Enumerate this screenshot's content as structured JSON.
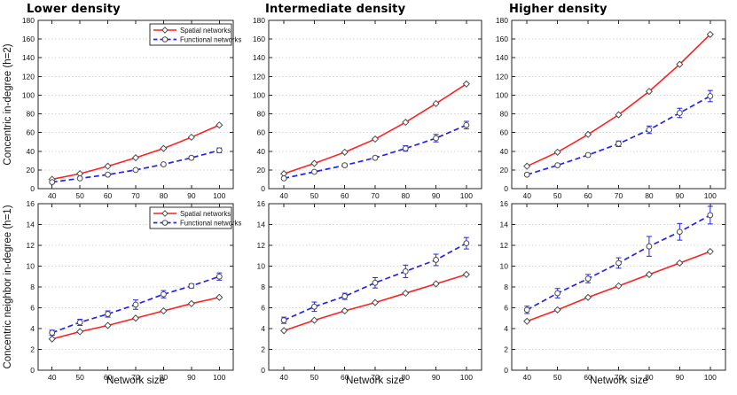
{
  "figure": {
    "column_titles": [
      "Lower density",
      "Intermediate density",
      "Higher density"
    ],
    "row_ylabels": [
      "Concentric in-degree (h=2)",
      "Concentric neighbor in-degree (h=1)"
    ],
    "xlabel": "Network size",
    "legend_labels": [
      "Spatial networks",
      "Functional networks"
    ],
    "colors": {
      "spatial": "#ff2020",
      "functional": "#2424ee",
      "grid": "#d6d6d6",
      "axis": "#262626",
      "marker_fill": "#ffffff",
      "marker_edge": "#4d4d4d",
      "text": "#111111"
    }
  },
  "chart_data": [
    {
      "type": "line",
      "title": "Lower density",
      "ylabel": "Concentric in-degree (h=2)",
      "xlabel": "",
      "x": [
        40,
        50,
        60,
        70,
        80,
        90,
        100
      ],
      "xlim": [
        35,
        105
      ],
      "ylim": [
        0,
        180
      ],
      "ytick_step": 20,
      "grid": "horizontal-dotted",
      "legend": true,
      "series": [
        {
          "name": "Spatial networks",
          "color": "#ff2020",
          "style": "solid",
          "marker": "diamond",
          "values": [
            10,
            16,
            24,
            33,
            43,
            55,
            68
          ],
          "err": [
            0,
            0,
            0,
            0,
            0,
            0,
            0
          ]
        },
        {
          "name": "Functional networks",
          "color": "#2424ee",
          "style": "dashed",
          "marker": "circle",
          "values": [
            7,
            11,
            15,
            20,
            26,
            33,
            41
          ],
          "err": [
            0.5,
            0.5,
            0.5,
            1,
            1,
            1.5,
            2.5
          ]
        }
      ]
    },
    {
      "type": "line",
      "title": "Intermediate density",
      "ylabel": "Concentric in-degree (h=2)",
      "xlabel": "",
      "x": [
        40,
        50,
        60,
        70,
        80,
        90,
        100
      ],
      "xlim": [
        35,
        105
      ],
      "ylim": [
        0,
        180
      ],
      "ytick_step": 20,
      "grid": "horizontal-dotted",
      "legend": false,
      "series": [
        {
          "name": "Spatial networks",
          "color": "#ff2020",
          "style": "solid",
          "marker": "diamond",
          "values": [
            16,
            27,
            39,
            53,
            71,
            91,
            112
          ],
          "err": [
            0,
            0,
            0,
            0,
            0,
            0,
            0
          ]
        },
        {
          "name": "Functional networks",
          "color": "#2424ee",
          "style": "dashed",
          "marker": "circle",
          "values": [
            11,
            18,
            25,
            33,
            43,
            54,
            68
          ],
          "err": [
            1,
            1,
            1.5,
            1.5,
            3,
            4,
            4
          ]
        }
      ]
    },
    {
      "type": "line",
      "title": "Higher density",
      "ylabel": "Concentric in-degree (h=2)",
      "xlabel": "",
      "x": [
        40,
        50,
        60,
        70,
        80,
        90,
        100
      ],
      "xlim": [
        35,
        105
      ],
      "ylim": [
        0,
        180
      ],
      "ytick_step": 20,
      "grid": "horizontal-dotted",
      "legend": false,
      "series": [
        {
          "name": "Spatial networks",
          "color": "#ff2020",
          "style": "solid",
          "marker": "diamond",
          "values": [
            24,
            39,
            58,
            79,
            104,
            133,
            165
          ],
          "err": [
            0,
            0,
            0,
            0,
            0,
            0,
            0
          ]
        },
        {
          "name": "Functional networks",
          "color": "#2424ee",
          "style": "dashed",
          "marker": "circle",
          "values": [
            15,
            25,
            36,
            48,
            63,
            81,
            99
          ],
          "err": [
            1,
            1,
            1.5,
            3,
            4,
            5,
            6
          ]
        }
      ]
    },
    {
      "type": "line",
      "title": "",
      "ylabel": "Concentric neighbor in-degree (h=1)",
      "xlabel": "Network size",
      "x": [
        40,
        50,
        60,
        70,
        80,
        90,
        100
      ],
      "xlim": [
        35,
        105
      ],
      "ylim": [
        0,
        16
      ],
      "ytick_step": 2,
      "grid": "horizontal-dotted",
      "legend": true,
      "series": [
        {
          "name": "Spatial networks",
          "color": "#ff2020",
          "style": "solid",
          "marker": "diamond",
          "values": [
            3.0,
            3.7,
            4.3,
            5.0,
            5.7,
            6.4,
            7.0
          ],
          "err": [
            0.15,
            0.1,
            0.1,
            0.1,
            0.1,
            0.1,
            0.1
          ]
        },
        {
          "name": "Functional networks",
          "color": "#2424ee",
          "style": "dashed",
          "marker": "circle",
          "values": [
            3.6,
            4.6,
            5.4,
            6.3,
            7.3,
            8.1,
            9.0
          ],
          "err": [
            0.25,
            0.3,
            0.3,
            0.45,
            0.35,
            0.2,
            0.35
          ]
        }
      ]
    },
    {
      "type": "line",
      "title": "",
      "ylabel": "Concentric neighbor in-degree (h=1)",
      "xlabel": "Network size",
      "x": [
        40,
        50,
        60,
        70,
        80,
        90,
        100
      ],
      "xlim": [
        35,
        105
      ],
      "ylim": [
        0,
        16
      ],
      "ytick_step": 2,
      "grid": "horizontal-dotted",
      "legend": false,
      "series": [
        {
          "name": "Spatial networks",
          "color": "#ff2020",
          "style": "solid",
          "marker": "diamond",
          "values": [
            3.8,
            4.8,
            5.7,
            6.5,
            7.4,
            8.3,
            9.2
          ],
          "err": [
            0.1,
            0.1,
            0.1,
            0.1,
            0.1,
            0.1,
            0.1
          ]
        },
        {
          "name": "Functional networks",
          "color": "#2424ee",
          "style": "dashed",
          "marker": "circle",
          "values": [
            4.8,
            6.1,
            7.1,
            8.4,
            9.5,
            10.6,
            12.2
          ],
          "err": [
            0.3,
            0.45,
            0.3,
            0.5,
            0.6,
            0.55,
            0.55
          ]
        }
      ]
    },
    {
      "type": "line",
      "title": "",
      "ylabel": "Concentric neighbor in-degree (h=1)",
      "xlabel": "Network size",
      "x": [
        40,
        50,
        60,
        70,
        80,
        90,
        100
      ],
      "xlim": [
        35,
        105
      ],
      "ylim": [
        0,
        16
      ],
      "ytick_step": 2,
      "grid": "horizontal-dotted",
      "legend": false,
      "series": [
        {
          "name": "Spatial networks",
          "color": "#ff2020",
          "style": "solid",
          "marker": "diamond",
          "values": [
            4.7,
            5.8,
            7.0,
            8.1,
            9.2,
            10.3,
            11.4
          ],
          "err": [
            0.1,
            0.1,
            0.1,
            0.1,
            0.1,
            0.1,
            0.1
          ]
        },
        {
          "name": "Functional networks",
          "color": "#2424ee",
          "style": "dashed",
          "marker": "circle",
          "values": [
            5.8,
            7.4,
            8.8,
            10.3,
            11.9,
            13.3,
            14.9
          ],
          "err": [
            0.35,
            0.45,
            0.4,
            0.5,
            0.95,
            0.8,
            0.85
          ]
        }
      ]
    }
  ]
}
